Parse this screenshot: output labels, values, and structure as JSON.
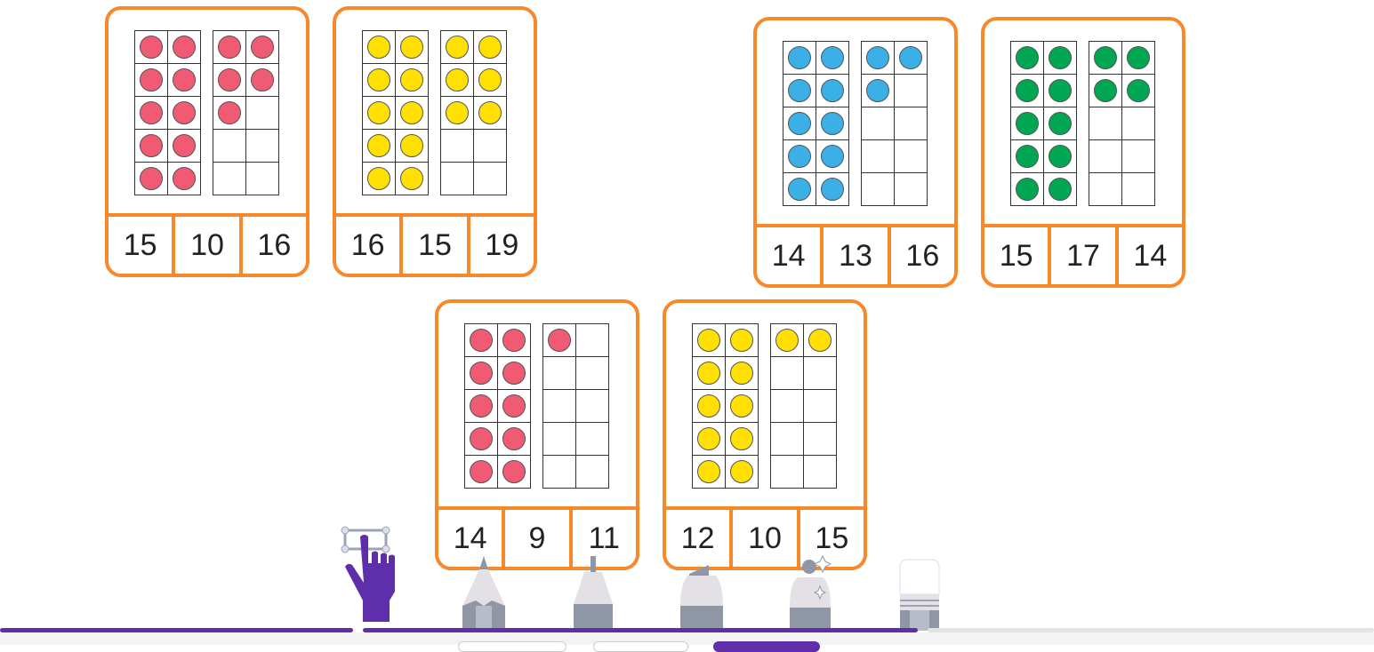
{
  "colors": {
    "card_border": "#f7892b",
    "accent": "#5f2eaa",
    "red": "#f05a72",
    "yellow": "#ffe000",
    "blue": "#3bb0e6",
    "green": "#00a651"
  },
  "cards": [
    {
      "color": "red",
      "count": 15,
      "answers": [
        "15",
        "10",
        "16"
      ]
    },
    {
      "color": "yellow",
      "count": 16,
      "answers": [
        "16",
        "15",
        "19"
      ]
    },
    {
      "color": "blue",
      "count": 13,
      "answers": [
        "14",
        "13",
        "16"
      ]
    },
    {
      "color": "green",
      "count": 14,
      "answers": [
        "15",
        "17",
        "14"
      ]
    },
    {
      "color": "red",
      "count": 11,
      "answers": [
        "14",
        "9",
        "11"
      ]
    },
    {
      "color": "yellow",
      "count": 12,
      "answers": [
        "12",
        "10",
        "15"
      ]
    }
  ],
  "toolbar": {
    "tools": [
      "select-hand-icon",
      "pencil-icon",
      "pen-icon",
      "highlighter-icon",
      "magic-pen-icon",
      "eraser-icon"
    ]
  }
}
